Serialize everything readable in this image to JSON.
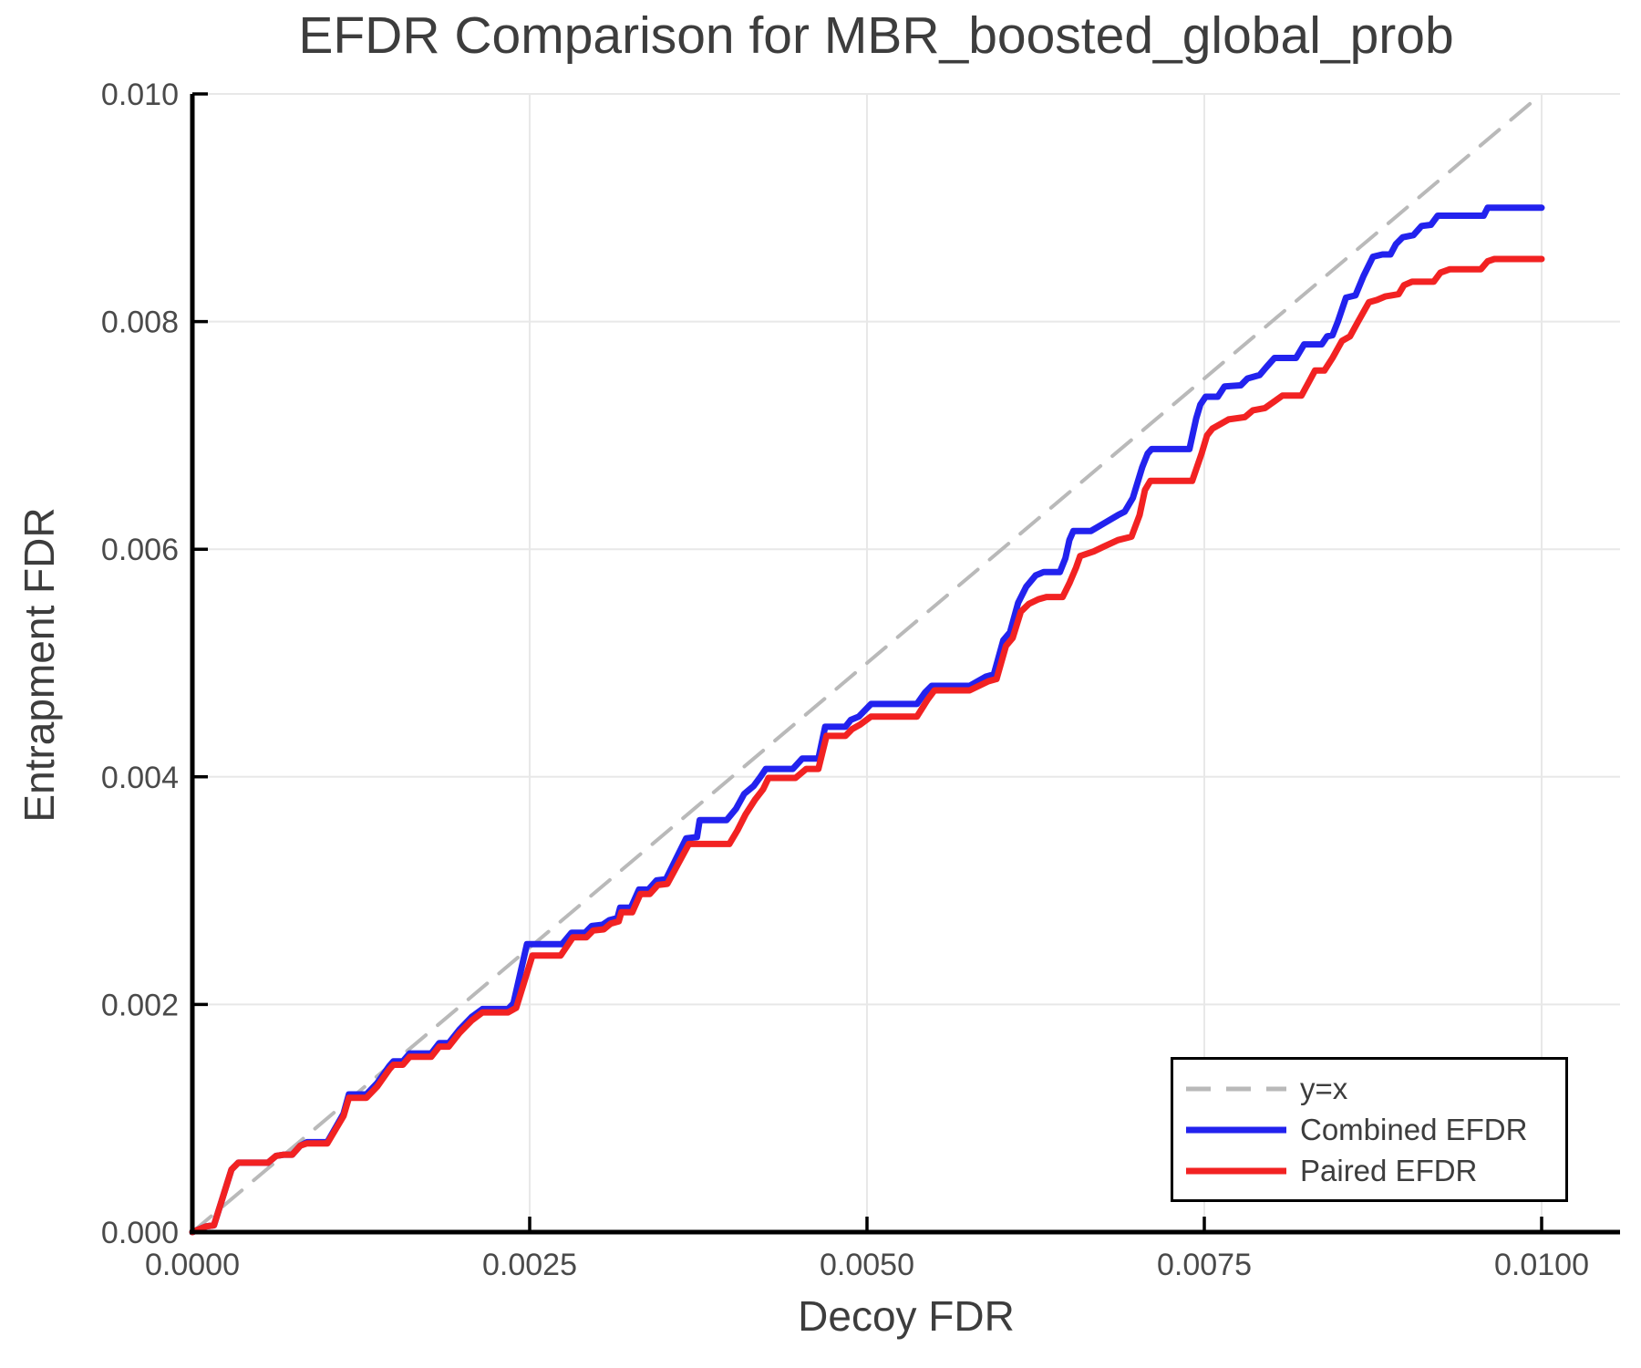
{
  "page": {
    "background": "#ffffff"
  },
  "chart_data": {
    "type": "line",
    "title": "EFDR Comparison for MBR_boosted_global_prob",
    "xlabel": "Decoy FDR",
    "ylabel": "Entrapment FDR",
    "xlim": [
      0,
      0.0106
    ],
    "ylim": [
      0,
      0.01
    ],
    "grid": true,
    "legend_position": "lower right",
    "axis_color": "#000000",
    "grid_color": "#e8e8e8",
    "tick_label_color": "#4a4a4a",
    "x_ticks": {
      "values": [
        0,
        0.0025,
        0.005,
        0.0075,
        0.01
      ],
      "labels": [
        "0.0000",
        "0.0025",
        "0.0050",
        "0.0075",
        "0.0100"
      ]
    },
    "y_ticks": {
      "values": [
        0,
        0.002,
        0.004,
        0.006,
        0.008,
        0.01
      ],
      "labels": [
        "0.000",
        "0.002",
        "0.004",
        "0.006",
        "0.008",
        "0.010"
      ]
    },
    "series": [
      {
        "name": "y=x",
        "color": "#b9b9b9",
        "dashed": true,
        "width": 4,
        "points": [
          [
            0,
            0
          ],
          [
            0.01,
            0.01
          ]
        ]
      },
      {
        "name": "Combined EFDR",
        "color": "#2222ee",
        "dashed": false,
        "width": 7,
        "points": [
          [
            0,
            0
          ],
          [
            0.0001,
            5e-05
          ],
          [
            0.00016,
            6e-05
          ],
          [
            0.00029,
            0.00055
          ],
          [
            0.00034,
            0.00061
          ],
          [
            0.00056,
            0.00061
          ],
          [
            0.00062,
            0.00067
          ],
          [
            0.00068,
            0.00068
          ],
          [
            0.00074,
            0.00068
          ],
          [
            0.0008,
            0.00076
          ],
          [
            0.00085,
            0.00079
          ],
          [
            0.001,
            0.00079
          ],
          [
            0.00112,
            0.00104
          ],
          [
            0.00116,
            0.00121
          ],
          [
            0.00129,
            0.00121
          ],
          [
            0.00137,
            0.00131
          ],
          [
            0.00146,
            0.00146
          ],
          [
            0.00149,
            0.0015
          ],
          [
            0.00156,
            0.0015
          ],
          [
            0.00161,
            0.00157
          ],
          [
            0.00177,
            0.00157
          ],
          [
            0.00183,
            0.00166
          ],
          [
            0.0019,
            0.00166
          ],
          [
            0.00198,
            0.00178
          ],
          [
            0.00207,
            0.00189
          ],
          [
            0.00215,
            0.00196
          ],
          [
            0.00234,
            0.00196
          ],
          [
            0.00238,
            0.00201
          ],
          [
            0.00248,
            0.00253
          ],
          [
            0.00274,
            0.00253
          ],
          [
            0.00281,
            0.00263
          ],
          [
            0.00291,
            0.00263
          ],
          [
            0.00296,
            0.00269
          ],
          [
            0.00304,
            0.0027
          ],
          [
            0.00309,
            0.00274
          ],
          [
            0.00315,
            0.00276
          ],
          [
            0.00317,
            0.00285
          ],
          [
            0.00325,
            0.00285
          ],
          [
            0.00331,
            0.00301
          ],
          [
            0.00338,
            0.00301
          ],
          [
            0.00344,
            0.00309
          ],
          [
            0.00351,
            0.0031
          ],
          [
            0.00356,
            0.00322
          ],
          [
            0.00366,
            0.00346
          ],
          [
            0.00374,
            0.00347
          ],
          [
            0.00376,
            0.00362
          ],
          [
            0.00396,
            0.00362
          ],
          [
            0.00403,
            0.00372
          ],
          [
            0.00409,
            0.00385
          ],
          [
            0.00416,
            0.00392
          ],
          [
            0.00421,
            0.004
          ],
          [
            0.00425,
            0.00407
          ],
          [
            0.00445,
            0.00407
          ],
          [
            0.00452,
            0.00416
          ],
          [
            0.00464,
            0.00416
          ],
          [
            0.00469,
            0.00444
          ],
          [
            0.00484,
            0.00444
          ],
          [
            0.00488,
            0.0045
          ],
          [
            0.00494,
            0.00453
          ],
          [
            0.00503,
            0.00464
          ],
          [
            0.00537,
            0.00464
          ],
          [
            0.00543,
            0.00474
          ],
          [
            0.00548,
            0.0048
          ],
          [
            0.00576,
            0.0048
          ],
          [
            0.00588,
            0.00488
          ],
          [
            0.00594,
            0.0049
          ],
          [
            0.00601,
            0.0052
          ],
          [
            0.00606,
            0.00527
          ],
          [
            0.00612,
            0.00553
          ],
          [
            0.00618,
            0.00567
          ],
          [
            0.00625,
            0.00577
          ],
          [
            0.00631,
            0.0058
          ],
          [
            0.00643,
            0.0058
          ],
          [
            0.00647,
            0.00592
          ],
          [
            0.0065,
            0.00608
          ],
          [
            0.00653,
            0.00616
          ],
          [
            0.00666,
            0.00616
          ],
          [
            0.00676,
            0.00623
          ],
          [
            0.00686,
            0.0063
          ],
          [
            0.00691,
            0.00633
          ],
          [
            0.00697,
            0.00645
          ],
          [
            0.00704,
            0.00672
          ],
          [
            0.00708,
            0.00684
          ],
          [
            0.00711,
            0.00688
          ],
          [
            0.00739,
            0.00688
          ],
          [
            0.00744,
            0.00715
          ],
          [
            0.00747,
            0.00727
          ],
          [
            0.00751,
            0.00734
          ],
          [
            0.0076,
            0.00734
          ],
          [
            0.00765,
            0.00743
          ],
          [
            0.00777,
            0.00744
          ],
          [
            0.00782,
            0.0075
          ],
          [
            0.00791,
            0.00753
          ],
          [
            0.00796,
            0.0076
          ],
          [
            0.00802,
            0.00768
          ],
          [
            0.00818,
            0.00768
          ],
          [
            0.00824,
            0.0078
          ],
          [
            0.00837,
            0.0078
          ],
          [
            0.00841,
            0.00787
          ],
          [
            0.00845,
            0.00788
          ],
          [
            0.00849,
            0.008
          ],
          [
            0.00855,
            0.00821
          ],
          [
            0.00862,
            0.00823
          ],
          [
            0.00868,
            0.0084
          ],
          [
            0.00875,
            0.00857
          ],
          [
            0.00882,
            0.00859
          ],
          [
            0.00888,
            0.00859
          ],
          [
            0.00892,
            0.00868
          ],
          [
            0.00897,
            0.00874
          ],
          [
            0.00905,
            0.00876
          ],
          [
            0.00911,
            0.00884
          ],
          [
            0.00918,
            0.00885
          ],
          [
            0.00923,
            0.00893
          ],
          [
            0.00957,
            0.00893
          ],
          [
            0.0096,
            0.009
          ],
          [
            0.01,
            0.009
          ]
        ]
      },
      {
        "name": "Paired EFDR",
        "color": "#f22222",
        "dashed": false,
        "width": 7,
        "points": [
          [
            0,
            0
          ],
          [
            0.0001,
            5e-05
          ],
          [
            0.00016,
            6e-05
          ],
          [
            0.00029,
            0.00055
          ],
          [
            0.00034,
            0.00061
          ],
          [
            0.00056,
            0.00061
          ],
          [
            0.00062,
            0.00067
          ],
          [
            0.00068,
            0.00068
          ],
          [
            0.00074,
            0.00068
          ],
          [
            0.0008,
            0.00076
          ],
          [
            0.00085,
            0.00078
          ],
          [
            0.001,
            0.00078
          ],
          [
            0.00112,
            0.00102
          ],
          [
            0.00116,
            0.00118
          ],
          [
            0.00129,
            0.00118
          ],
          [
            0.00137,
            0.00128
          ],
          [
            0.00146,
            0.00143
          ],
          [
            0.00149,
            0.00147
          ],
          [
            0.00156,
            0.00147
          ],
          [
            0.00161,
            0.00154
          ],
          [
            0.00177,
            0.00154
          ],
          [
            0.00183,
            0.00163
          ],
          [
            0.0019,
            0.00163
          ],
          [
            0.00198,
            0.00175
          ],
          [
            0.00207,
            0.00186
          ],
          [
            0.00215,
            0.00193
          ],
          [
            0.00234,
            0.00193
          ],
          [
            0.0024,
            0.00197
          ],
          [
            0.00252,
            0.00243
          ],
          [
            0.00273,
            0.00243
          ],
          [
            0.00282,
            0.00259
          ],
          [
            0.00292,
            0.00259
          ],
          [
            0.00297,
            0.00265
          ],
          [
            0.00305,
            0.00266
          ],
          [
            0.0031,
            0.00271
          ],
          [
            0.00316,
            0.00273
          ],
          [
            0.00318,
            0.00281
          ],
          [
            0.00326,
            0.00281
          ],
          [
            0.00332,
            0.00297
          ],
          [
            0.00339,
            0.00297
          ],
          [
            0.00345,
            0.00305
          ],
          [
            0.00352,
            0.00306
          ],
          [
            0.00357,
            0.00317
          ],
          [
            0.00368,
            0.00341
          ],
          [
            0.00377,
            0.00341
          ],
          [
            0.00398,
            0.00341
          ],
          [
            0.00404,
            0.00353
          ],
          [
            0.0041,
            0.00367
          ],
          [
            0.00417,
            0.0038
          ],
          [
            0.00423,
            0.00389
          ],
          [
            0.00427,
            0.00399
          ],
          [
            0.00447,
            0.00399
          ],
          [
            0.00455,
            0.00407
          ],
          [
            0.00464,
            0.00407
          ],
          [
            0.0047,
            0.00436
          ],
          [
            0.00484,
            0.00436
          ],
          [
            0.00489,
            0.00442
          ],
          [
            0.00495,
            0.00446
          ],
          [
            0.00503,
            0.00453
          ],
          [
            0.00537,
            0.00453
          ],
          [
            0.00545,
            0.00468
          ],
          [
            0.0055,
            0.00476
          ],
          [
            0.00576,
            0.00476
          ],
          [
            0.0059,
            0.00484
          ],
          [
            0.00596,
            0.00486
          ],
          [
            0.00603,
            0.00515
          ],
          [
            0.00608,
            0.00522
          ],
          [
            0.00614,
            0.00545
          ],
          [
            0.0062,
            0.00552
          ],
          [
            0.00627,
            0.00556
          ],
          [
            0.00633,
            0.00558
          ],
          [
            0.00645,
            0.00558
          ],
          [
            0.0065,
            0.0057
          ],
          [
            0.00655,
            0.00584
          ],
          [
            0.00658,
            0.00594
          ],
          [
            0.00668,
            0.00598
          ],
          [
            0.00675,
            0.00602
          ],
          [
            0.00686,
            0.00608
          ],
          [
            0.00696,
            0.00611
          ],
          [
            0.00702,
            0.0063
          ],
          [
            0.00706,
            0.00652
          ],
          [
            0.0071,
            0.0066
          ],
          [
            0.00741,
            0.0066
          ],
          [
            0.00748,
            0.00684
          ],
          [
            0.00752,
            0.007
          ],
          [
            0.00756,
            0.00706
          ],
          [
            0.00762,
            0.0071
          ],
          [
            0.00768,
            0.00714
          ],
          [
            0.0078,
            0.00716
          ],
          [
            0.00786,
            0.00722
          ],
          [
            0.00795,
            0.00724
          ],
          [
            0.00802,
            0.0073
          ],
          [
            0.00808,
            0.00735
          ],
          [
            0.00822,
            0.00735
          ],
          [
            0.00828,
            0.00748
          ],
          [
            0.00832,
            0.00757
          ],
          [
            0.00839,
            0.00757
          ],
          [
            0.00845,
            0.00768
          ],
          [
            0.00852,
            0.00783
          ],
          [
            0.00858,
            0.00787
          ],
          [
            0.00864,
            0.008
          ],
          [
            0.00872,
            0.00817
          ],
          [
            0.00878,
            0.00819
          ],
          [
            0.00884,
            0.00822
          ],
          [
            0.00894,
            0.00824
          ],
          [
            0.00898,
            0.00832
          ],
          [
            0.00904,
            0.00835
          ],
          [
            0.0092,
            0.00835
          ],
          [
            0.00925,
            0.00843
          ],
          [
            0.00932,
            0.00846
          ],
          [
            0.00955,
            0.00846
          ],
          [
            0.0096,
            0.00853
          ],
          [
            0.00965,
            0.00855
          ],
          [
            0.01,
            0.00855
          ]
        ]
      }
    ]
  }
}
